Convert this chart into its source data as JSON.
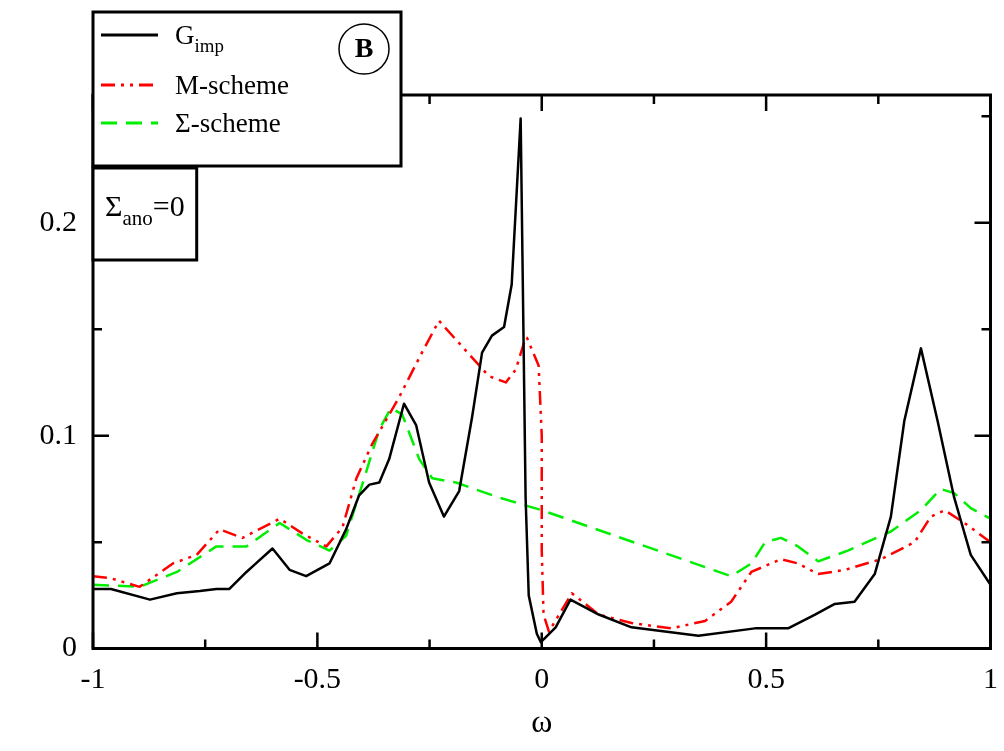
{
  "chart_data": {
    "type": "line",
    "xlabel": "ω",
    "xlim": [
      -1,
      1
    ],
    "ylim": [
      0,
      0.26
    ],
    "xticks": [
      -1,
      {
        "value": -0.75,
        "label": null
      },
      -0.5,
      {
        "value": -0.25,
        "label": null
      },
      0,
      {
        "value": 0.25,
        "label": null
      },
      0.5,
      {
        "value": 0.75,
        "label": null
      },
      1
    ],
    "yticks": [
      0,
      {
        "value": 0.05,
        "label": null
      },
      0.1,
      {
        "value": 0.15,
        "label": null
      },
      0.2,
      {
        "value": 0.25,
        "label": null
      }
    ],
    "legend": "top left",
    "annotations": [
      "B",
      "Σ$_{ano}$=0"
    ],
    "series": [
      {
        "name": "G$_{imp}$",
        "color": "#000000",
        "line_style": "solid",
        "x": [
          -1.0,
          -0.96,
          -0.873,
          -0.813,
          -0.762,
          -0.725,
          -0.696,
          -0.658,
          -0.6,
          -0.562,
          -0.525,
          -0.473,
          -0.436,
          -0.407,
          -0.384,
          -0.362,
          -0.34,
          -0.307,
          -0.28,
          -0.251,
          -0.218,
          -0.184,
          -0.155,
          -0.133,
          -0.111,
          -0.084,
          -0.067,
          -0.047,
          -0.036,
          -0.029,
          -0.011,
          -0.002,
          0.031,
          0.064,
          0.127,
          0.2,
          0.349,
          0.475,
          0.549,
          0.609,
          0.653,
          0.697,
          0.742,
          0.778,
          0.808,
          0.845,
          0.882,
          0.919,
          0.956,
          1.0
        ],
        "values": [
          0.028,
          0.028,
          0.023,
          0.026,
          0.027,
          0.028,
          0.028,
          0.036,
          0.047,
          0.037,
          0.034,
          0.04,
          0.056,
          0.072,
          0.077,
          0.078,
          0.089,
          0.115,
          0.105,
          0.078,
          0.062,
          0.074,
          0.109,
          0.139,
          0.147,
          0.151,
          0.171,
          0.249,
          0.071,
          0.025,
          0.007,
          0.003,
          0.01,
          0.023,
          0.016,
          0.01,
          0.006,
          0.0095,
          0.0095,
          0.016,
          0.021,
          0.022,
          0.035,
          0.062,
          0.107,
          0.141,
          0.107,
          0.071,
          0.044,
          0.03
        ]
      },
      {
        "name": "M-scheme",
        "color": "#ff0000",
        "line_style": "dashdotdot",
        "x": [
          -1.0,
          -0.96,
          -0.896,
          -0.822,
          -0.769,
          -0.718,
          -0.667,
          -0.584,
          -0.533,
          -0.48,
          -0.444,
          -0.413,
          -0.378,
          -0.318,
          -0.267,
          -0.229,
          -0.178,
          -0.118,
          -0.08,
          -0.058,
          -0.036,
          -0.033,
          -0.007,
          0.0,
          0.0,
          0.004,
          0.016,
          0.067,
          0.127,
          0.2,
          0.289,
          0.364,
          0.422,
          0.467,
          0.533,
          0.571,
          0.616,
          0.676,
          0.756,
          0.831,
          0.867,
          0.898,
          0.942,
          1.0
        ],
        "values": [
          0.034,
          0.033,
          0.029,
          0.04,
          0.044,
          0.056,
          0.052,
          0.061,
          0.054,
          0.048,
          0.057,
          0.08,
          0.096,
          0.118,
          0.139,
          0.154,
          0.142,
          0.128,
          0.125,
          0.131,
          0.146,
          0.146,
          0.133,
          0.1,
          0.046,
          0.016,
          0.008,
          0.026,
          0.016,
          0.012,
          0.0095,
          0.013,
          0.022,
          0.036,
          0.042,
          0.04,
          0.035,
          0.037,
          0.042,
          0.05,
          0.062,
          0.065,
          0.059,
          0.05
        ]
      },
      {
        "name": "Σ-scheme",
        "color": "#00ee00",
        "line_style": "dashed",
        "x": [
          -1.0,
          -0.896,
          -0.813,
          -0.725,
          -0.658,
          -0.584,
          -0.524,
          -0.473,
          -0.436,
          -0.4,
          -0.362,
          -0.336,
          -0.311,
          -0.273,
          -0.244,
          -0.191,
          -0.096,
          0.0,
          0.422,
          0.467,
          0.498,
          0.533,
          0.571,
          0.616,
          0.682,
          0.778,
          0.845,
          0.889,
          0.919,
          0.956,
          1.0
        ],
        "values": [
          0.03,
          0.029,
          0.036,
          0.048,
          0.048,
          0.059,
          0.051,
          0.046,
          0.053,
          0.077,
          0.103,
          0.113,
          0.11,
          0.089,
          0.08,
          0.078,
          0.071,
          0.065,
          0.034,
          0.04,
          0.05,
          0.052,
          0.048,
          0.041,
          0.046,
          0.055,
          0.065,
          0.075,
          0.073,
          0.066,
          0.061
        ]
      }
    ]
  }
}
